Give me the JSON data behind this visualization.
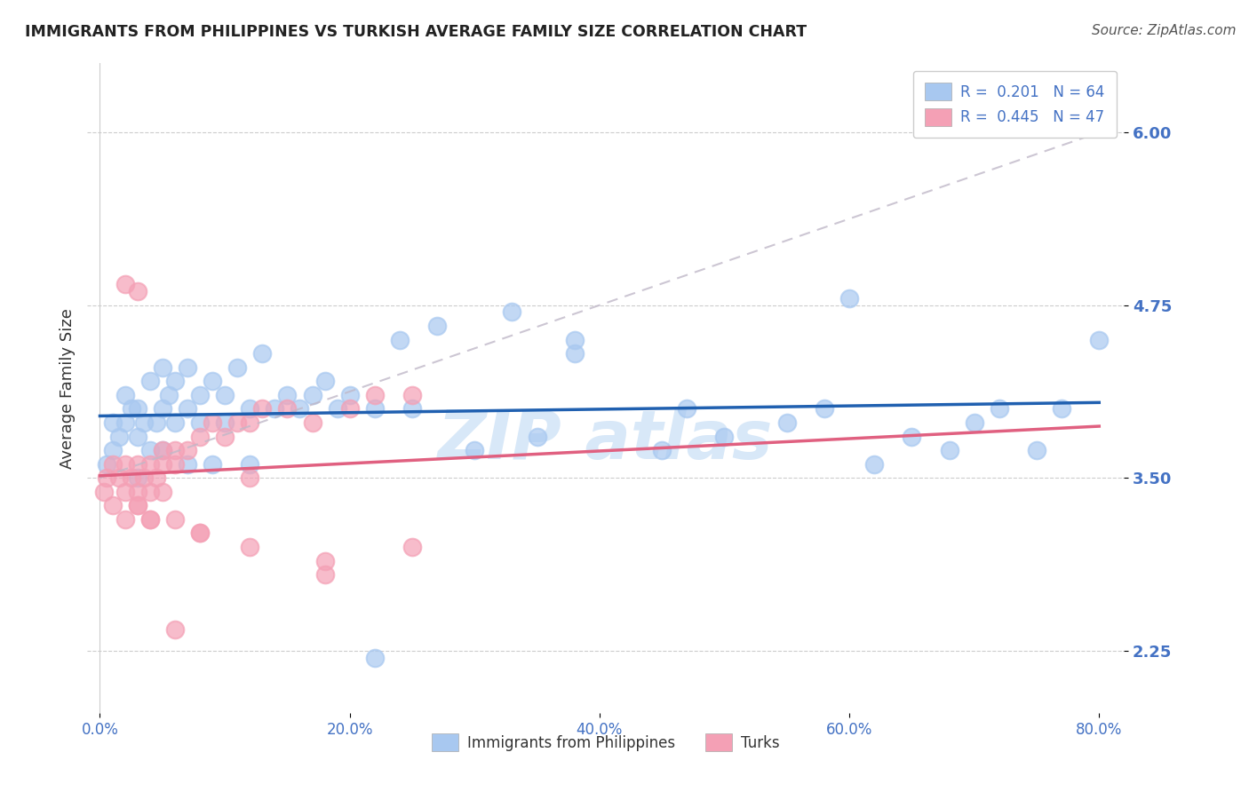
{
  "title": "IMMIGRANTS FROM PHILIPPINES VS TURKISH AVERAGE FAMILY SIZE CORRELATION CHART",
  "source": "Source: ZipAtlas.com",
  "ylabel": "Average Family Size",
  "xlabel_ticks": [
    "0.0%",
    "20.0%",
    "40.0%",
    "60.0%",
    "80.0%"
  ],
  "xlabel_vals": [
    0,
    20,
    40,
    60,
    80
  ],
  "yticks": [
    2.25,
    3.5,
    4.75,
    6.0
  ],
  "xlim": [
    -1,
    82
  ],
  "ylim": [
    1.8,
    6.5
  ],
  "legend_r1": "R =  0.201   N = 64",
  "legend_r2": "R =  0.445   N = 47",
  "legend_label1": "Immigrants from Philippines",
  "legend_label2": "Turks",
  "blue_color": "#A8C8F0",
  "pink_color": "#F4A0B5",
  "trendline_blue_color": "#2060B0",
  "trendline_pink_color": "#E06080",
  "trendline_gray_color": "#C0B8C8",
  "background_color": "#FFFFFF",
  "title_color": "#222222",
  "axis_tick_color": "#4472C4",
  "watermark_color": "#D8E8F8",
  "blue_x": [
    0.5,
    1,
    1,
    1.5,
    2,
    2,
    2.5,
    3,
    3,
    3.5,
    4,
    4,
    4.5,
    5,
    5,
    5.5,
    6,
    6,
    7,
    7,
    8,
    8,
    9,
    10,
    10,
    11,
    12,
    13,
    14,
    15,
    16,
    17,
    18,
    19,
    20,
    22,
    24,
    25,
    27,
    30,
    33,
    35,
    38,
    45,
    47,
    50,
    55,
    58,
    60,
    62,
    65,
    68,
    70,
    72,
    75,
    77,
    80,
    3,
    5,
    7,
    9,
    12,
    22,
    38
  ],
  "blue_y": [
    3.6,
    3.7,
    3.9,
    3.8,
    3.9,
    4.1,
    4.0,
    3.8,
    4.0,
    3.9,
    3.7,
    4.2,
    3.9,
    4.0,
    4.3,
    4.1,
    3.9,
    4.2,
    4.0,
    4.3,
    3.9,
    4.1,
    4.2,
    3.9,
    4.1,
    4.3,
    4.0,
    4.4,
    4.0,
    4.1,
    4.0,
    4.1,
    4.2,
    4.0,
    4.1,
    4.0,
    4.5,
    4.0,
    4.6,
    3.7,
    4.7,
    3.8,
    4.4,
    3.7,
    4.0,
    3.8,
    3.9,
    4.0,
    4.8,
    3.6,
    3.8,
    3.7,
    3.9,
    4.0,
    3.7,
    4.0,
    4.5,
    3.5,
    3.7,
    3.6,
    3.6,
    3.6,
    2.2,
    4.5
  ],
  "pink_x": [
    0.3,
    0.5,
    1,
    1,
    1.5,
    2,
    2,
    2.5,
    3,
    3,
    3.5,
    4,
    4,
    4.5,
    5,
    5,
    6,
    6,
    7,
    8,
    9,
    10,
    11,
    12,
    13,
    15,
    17,
    20,
    22,
    25,
    3,
    4,
    6,
    8,
    12,
    18,
    25,
    2,
    3,
    5,
    12,
    18,
    3,
    2,
    4,
    6,
    8
  ],
  "pink_y": [
    3.4,
    3.5,
    3.3,
    3.6,
    3.5,
    3.4,
    3.6,
    3.5,
    3.4,
    3.6,
    3.5,
    3.4,
    3.6,
    3.5,
    3.6,
    3.7,
    3.6,
    3.7,
    3.7,
    3.8,
    3.9,
    3.8,
    3.9,
    3.9,
    4.0,
    4.0,
    3.9,
    4.0,
    4.1,
    4.1,
    3.3,
    3.2,
    3.2,
    3.1,
    3.0,
    2.9,
    3.0,
    4.9,
    4.85,
    3.4,
    3.5,
    2.8,
    3.3,
    3.2,
    3.2,
    2.4,
    3.1
  ]
}
